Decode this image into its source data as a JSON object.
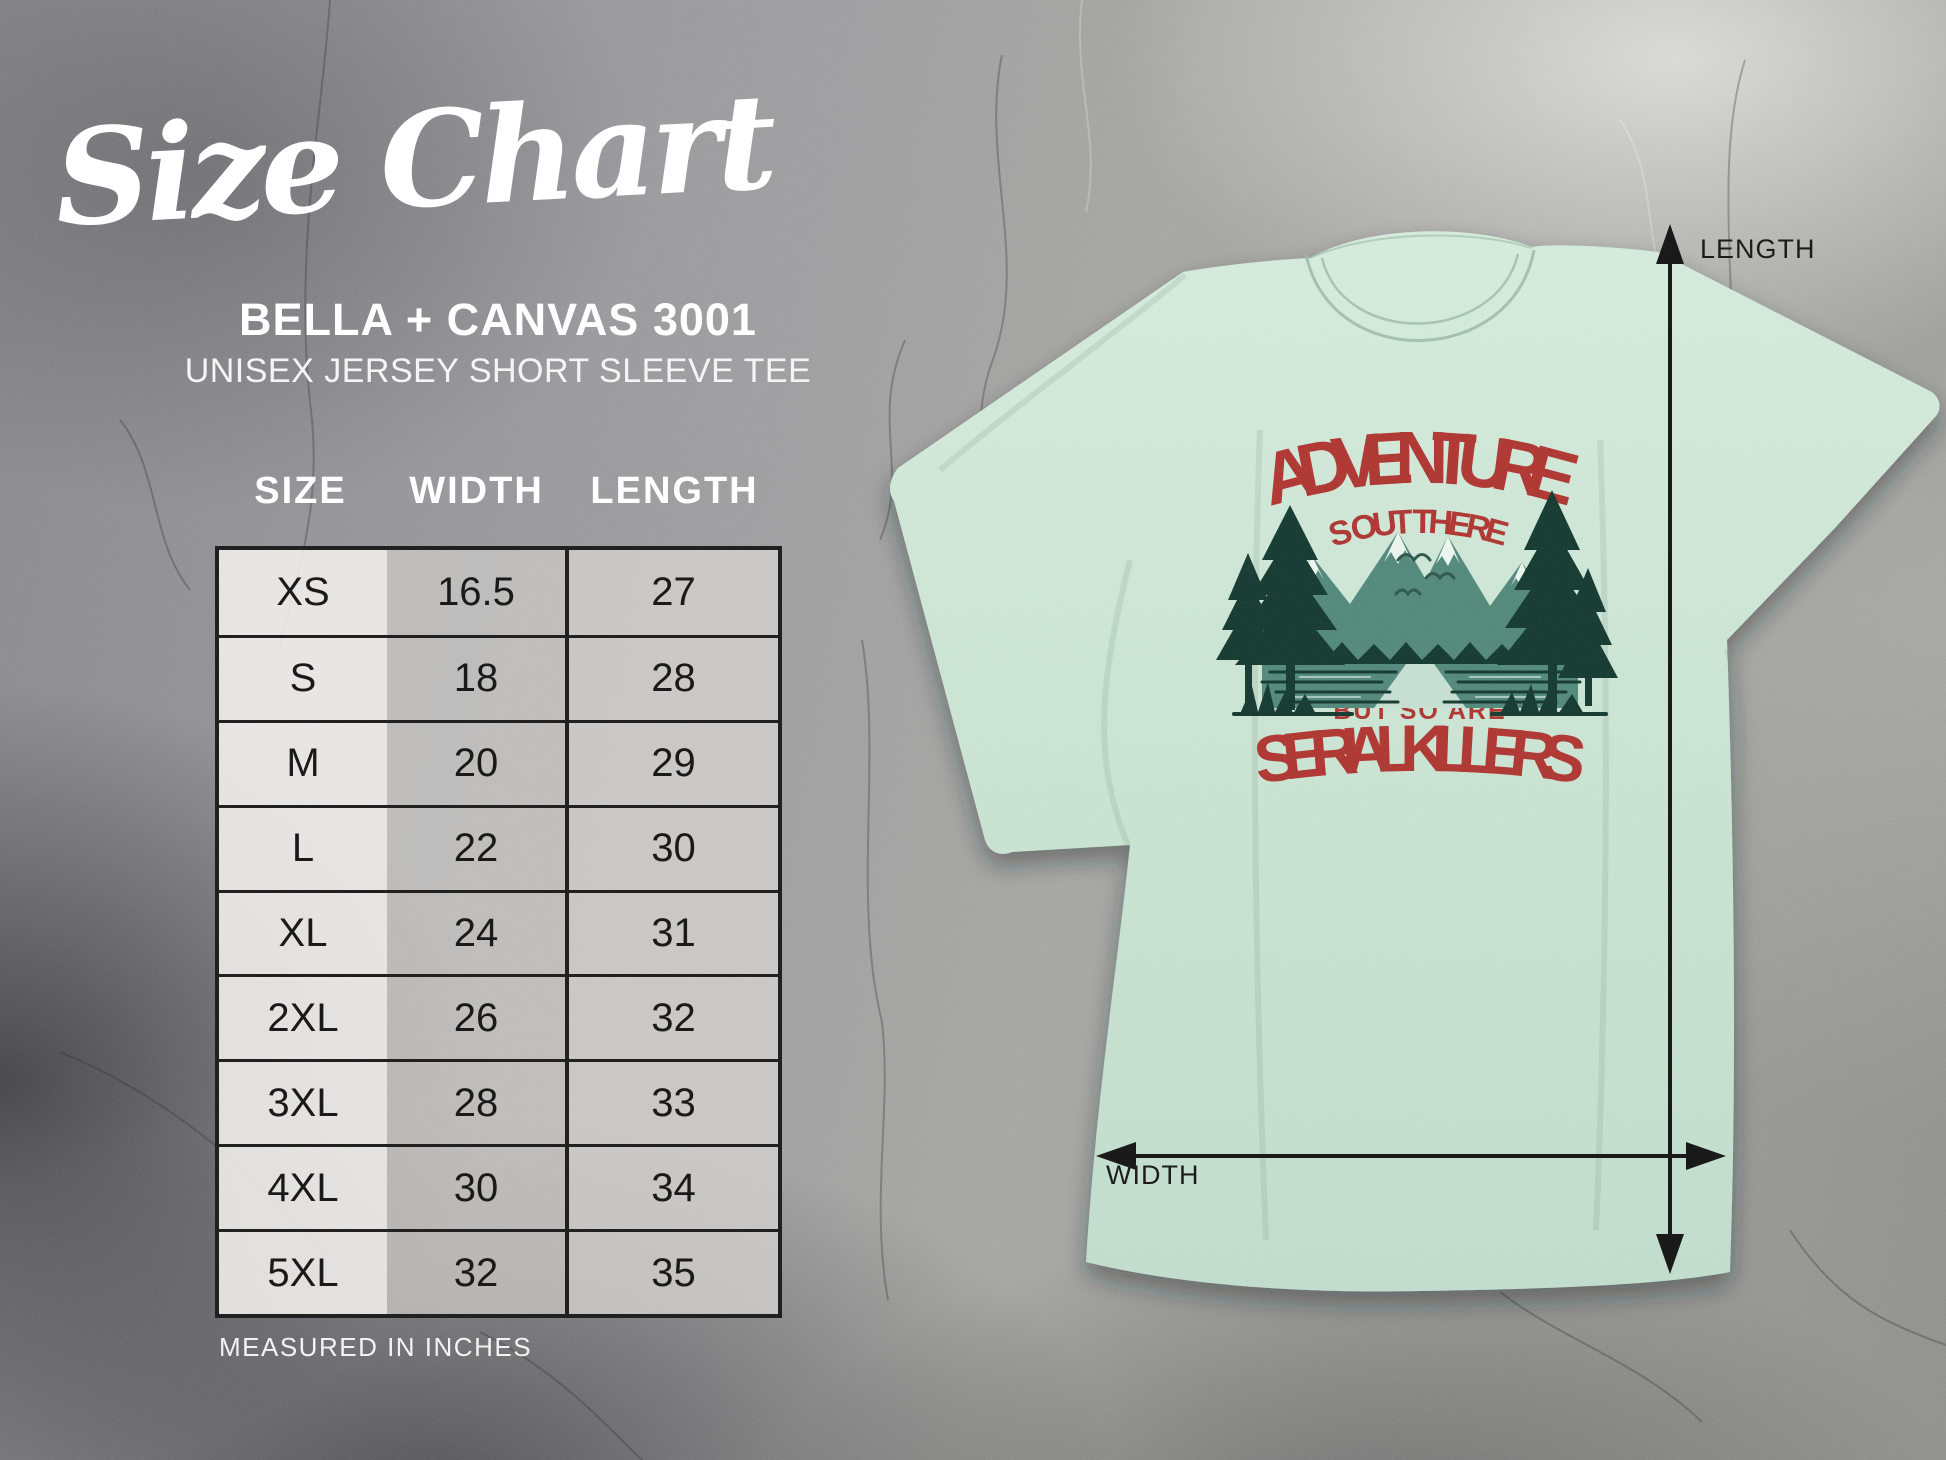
{
  "title": {
    "script": "Size Chart",
    "product": "BELLA + CANVAS 3001",
    "subtitle": "UNISEX JERSEY SHORT SLEEVE TEE"
  },
  "table": {
    "headers": [
      "SIZE",
      "WIDTH",
      "LENGTH"
    ],
    "rows": [
      [
        "XS",
        "16.5",
        "27"
      ],
      [
        "S",
        "18",
        "28"
      ],
      [
        "M",
        "20",
        "29"
      ],
      [
        "L",
        "22",
        "30"
      ],
      [
        "XL",
        "24",
        "31"
      ],
      [
        "2XL",
        "26",
        "32"
      ],
      [
        "3XL",
        "28",
        "33"
      ],
      [
        "4XL",
        "30",
        "34"
      ],
      [
        "5XL",
        "32",
        "35"
      ]
    ],
    "footnote": "MEASURED IN INCHES"
  },
  "chart_data": {
    "type": "table",
    "title": "Size Chart - Bella + Canvas 3001 Unisex Jersey Short Sleeve Tee",
    "columns": [
      "SIZE",
      "WIDTH",
      "LENGTH"
    ],
    "units": "inches",
    "rows": [
      [
        "XS",
        16.5,
        27
      ],
      [
        "S",
        18,
        28
      ],
      [
        "M",
        20,
        29
      ],
      [
        "L",
        22,
        30
      ],
      [
        "XL",
        24,
        31
      ],
      [
        "2XL",
        26,
        32
      ],
      [
        "3XL",
        28,
        33
      ],
      [
        "4XL",
        30,
        34
      ],
      [
        "5XL",
        32,
        35
      ]
    ]
  },
  "shirt": {
    "design": {
      "line1": "ADVENTURE",
      "line2": "IS OUT THERE!",
      "line3": "BUT SO ARE",
      "line4": "SERIAL KILLERS"
    },
    "labels": {
      "length": "LENGTH",
      "width": "WIDTH"
    }
  },
  "colors": {
    "mint": "#c8e2d0",
    "design_red": "#ab322e",
    "pine_green": "#14362d",
    "teal": "#4e8477",
    "snow": "#e9f4ec",
    "arrow_black": "#141414"
  }
}
